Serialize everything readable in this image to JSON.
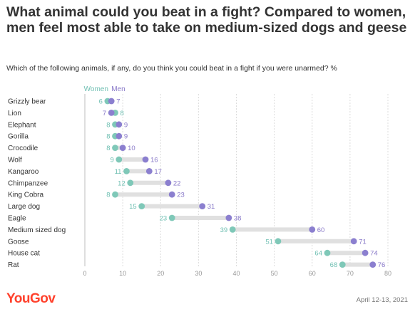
{
  "header": {
    "title": "What animal could you beat in a fight? Compared to women, men feel most able to take on medium-sized dogs and geese",
    "subtitle": "Which of the following animals, if any, do you think you could beat in a fight if you were unarmed? %"
  },
  "footer": {
    "logo": "YouGov",
    "date": "April 12-13, 2021"
  },
  "colors": {
    "women": "#7fc8b8",
    "men": "#8b7fcf",
    "connector": "#e0e0e0",
    "women_label": "#6fbfb2",
    "men_label": "#8878c8",
    "grid": "#dcdcdc"
  },
  "chart_data": {
    "type": "dumbbell",
    "categories": [
      "Grizzly bear",
      "Lion",
      "Elephant",
      "Gorilla",
      "Crocodile",
      "Wolf",
      "Kangaroo",
      "Chimpanzee",
      "King Cobra",
      "Large dog",
      "Eagle",
      "Medium sized dog",
      "Goose",
      "House cat",
      "Rat"
    ],
    "series": [
      {
        "name": "Women",
        "values": [
          6,
          8,
          8,
          8,
          8,
          9,
          11,
          12,
          8,
          15,
          23,
          39,
          51,
          64,
          68
        ]
      },
      {
        "name": "Men",
        "values": [
          7,
          7,
          9,
          9,
          10,
          16,
          17,
          22,
          23,
          31,
          38,
          60,
          71,
          74,
          76
        ]
      }
    ],
    "xlim": [
      0,
      80
    ],
    "xticks": [
      0,
      10,
      20,
      30,
      40,
      50,
      60,
      70,
      80
    ],
    "grid": true,
    "legend": "top-left"
  }
}
